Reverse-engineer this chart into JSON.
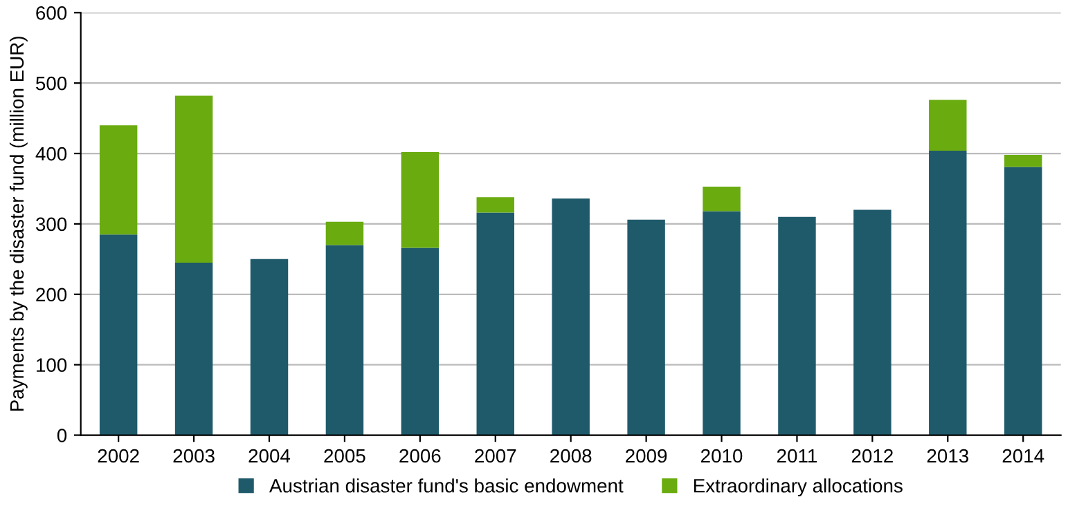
{
  "chart_data": {
    "type": "bar",
    "stacked": true,
    "ylabel": "Payments by the disaster fund (million EUR)",
    "categories": [
      "2002",
      "2003",
      "2004",
      "2005",
      "2006",
      "2007",
      "2008",
      "2009",
      "2010",
      "2011",
      "2012",
      "2013",
      "2014"
    ],
    "series": [
      {
        "name": "Austrian disaster fund's basic endowment",
        "color": "#1f5a6b",
        "values": [
          285,
          245,
          250,
          270,
          266,
          316,
          336,
          306,
          318,
          310,
          320,
          404,
          381
        ]
      },
      {
        "name": "Extraordinary allocations",
        "color": "#6aab10",
        "values": [
          155,
          237,
          null,
          33,
          136,
          22,
          null,
          null,
          35,
          null,
          null,
          72,
          17
        ]
      }
    ],
    "ylim": [
      0,
      600
    ],
    "yticks": [
      0,
      100,
      200,
      300,
      400,
      500,
      600
    ],
    "grid": "y",
    "legend": "bottom"
  }
}
